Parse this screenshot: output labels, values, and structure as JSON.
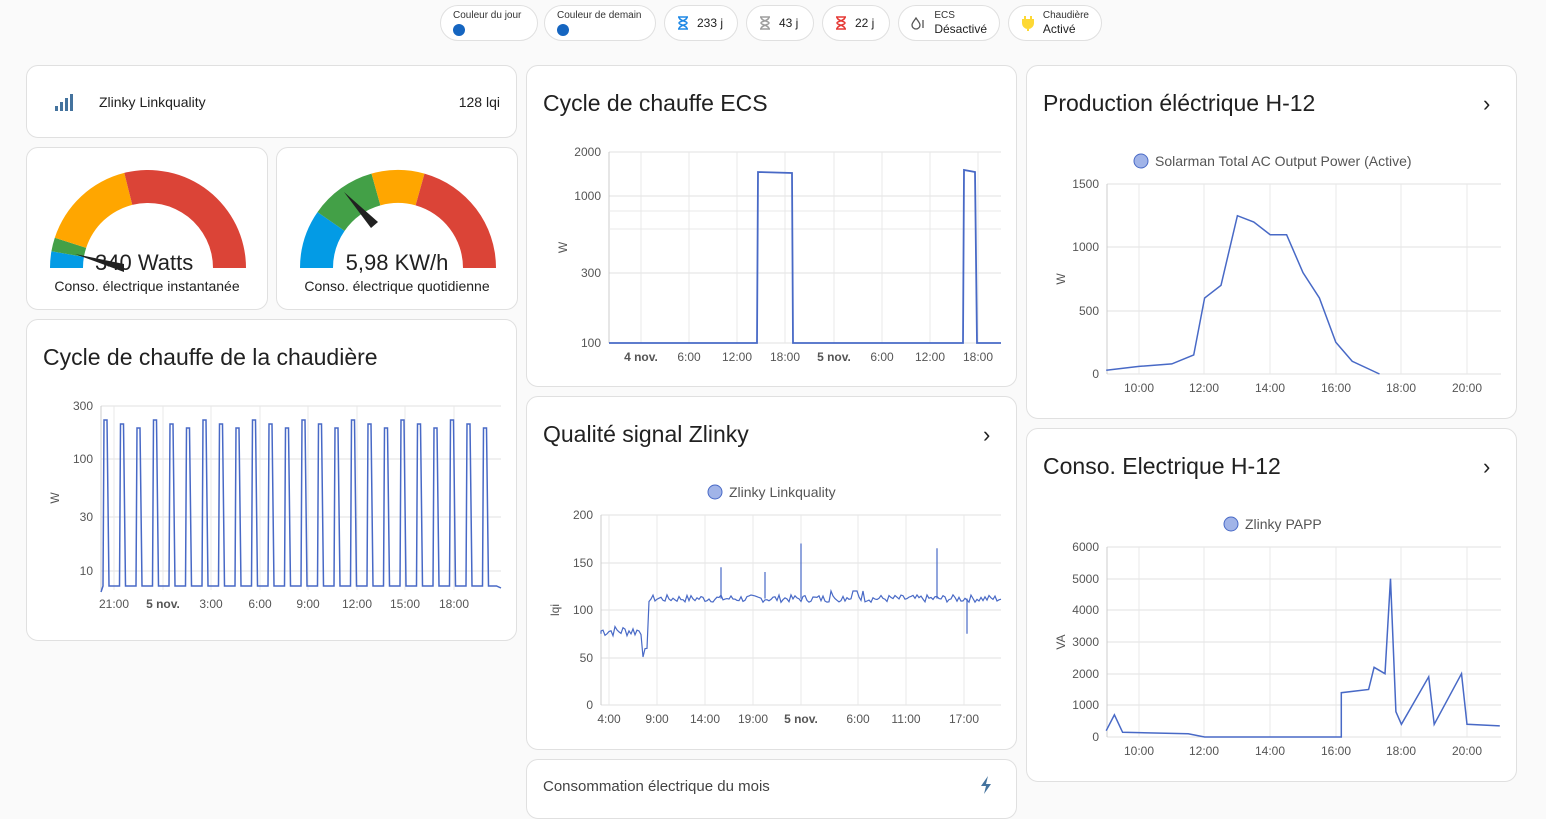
{
  "chips": {
    "couleur_jour": {
      "label": "Couleur du jour",
      "color": "#1565c0"
    },
    "couleur_demain": {
      "label": "Couleur de demain",
      "color": "#1565c0"
    },
    "tempo_blue": {
      "value": "233 j",
      "color": "#1e88e5"
    },
    "tempo_white": {
      "value": "43 j",
      "color": "#9e9e9e"
    },
    "tempo_red": {
      "value": "22 j",
      "color": "#e53935"
    },
    "ecs": {
      "label": "ECS",
      "value": "Désactivé"
    },
    "chaudiere": {
      "label": "Chaudière",
      "value": "Activé",
      "color": "#fdd835"
    }
  },
  "linkquality": {
    "name": "Zlinky Linkquality",
    "value": "128 lqi"
  },
  "gauges": [
    {
      "value": "340 Watts",
      "label": "Conso. électrique instantanée",
      "level": 0.05
    },
    {
      "value": "5,98 KW/h",
      "label": "Conso. électrique quotidienne",
      "level": 0.28
    }
  ],
  "chaudiere_card": {
    "title": "Cycle de chauffe de la chaudière"
  },
  "ecs_card": {
    "title": "Cycle de chauffe ECS"
  },
  "zlinky_card": {
    "title": "Qualité signal Zlinky"
  },
  "prod_card": {
    "title": "Production éléctrique H-12"
  },
  "conso_card": {
    "title": "Conso. Electrique H-12"
  },
  "mois_card": {
    "title": "Consommation électrique du mois"
  },
  "chart_data": [
    {
      "type": "line",
      "id": "chaudiere",
      "ylabel": "W",
      "scale": "log",
      "yticks": [
        "300",
        "100",
        "30",
        "10"
      ],
      "xticks": [
        "21:00",
        "5 nov.",
        "3:00",
        "6:00",
        "9:00",
        "12:00",
        "15:00",
        "18:00"
      ],
      "series": [
        {
          "values": "periodic spikes between ~5 W and ~250 W, about 24 cycles"
        }
      ]
    },
    {
      "type": "line",
      "id": "ecs",
      "ylabel": "W",
      "scale": "log",
      "yticks": [
        "2000",
        "1000",
        "300",
        "100"
      ],
      "xticks": [
        "4 nov.",
        "6:00",
        "12:00",
        "18:00",
        "5 nov.",
        "6:00",
        "12:00",
        "18:00"
      ],
      "series": [
        {
          "points": [
            [
              "4 nov. 00:00",
              100
            ],
            [
              "4 nov. 14:30",
              100
            ],
            [
              "4 nov. 14:30",
              1550
            ],
            [
              "4 nov. 18:10",
              1550
            ],
            [
              "4 nov. 18:10",
              100
            ],
            [
              "5 nov. 16:30",
              100
            ],
            [
              "5 nov. 16:30",
              1600
            ],
            [
              "5 nov. 17:10",
              1600
            ],
            [
              "5 nov. 17:10",
              100
            ],
            [
              "5 nov. 23:00",
              100
            ]
          ]
        }
      ]
    },
    {
      "type": "line",
      "id": "zlinky",
      "ylabel": "lqi",
      "ylim": [
        0,
        200
      ],
      "yticks": [
        "200",
        "150",
        "100",
        "50",
        "0"
      ],
      "xticks": [
        "4:00",
        "9:00",
        "14:00",
        "19:00",
        "5 nov.",
        "6:00",
        "11:00",
        "17:00"
      ],
      "series": [
        {
          "name": "Zlinky Linkquality",
          "color": "#a1b4e8",
          "values": "~75 until ~8:30 then ~110-115 with spikes to 170"
        }
      ]
    },
    {
      "type": "line",
      "id": "production",
      "ylabel": "W",
      "ylim": [
        0,
        1500
      ],
      "yticks": [
        "1500",
        "1000",
        "500",
        "0"
      ],
      "xticks": [
        "10:00",
        "12:00",
        "14:00",
        "16:00",
        "18:00",
        "20:00"
      ],
      "series": [
        {
          "name": "Solarman Total AC Output Power (Active)",
          "color": "#a1b4e8",
          "points": [
            [
              "9:00",
              30
            ],
            [
              "10:00",
              60
            ],
            [
              "11:00",
              80
            ],
            [
              "11:40",
              150
            ],
            [
              "12:00",
              600
            ],
            [
              "12:30",
              700
            ],
            [
              "13:00",
              1250
            ],
            [
              "13:30",
              1200
            ],
            [
              "14:00",
              1100
            ],
            [
              "14:30",
              1100
            ],
            [
              "15:00",
              800
            ],
            [
              "15:30",
              600
            ],
            [
              "16:00",
              250
            ],
            [
              "16:30",
              100
            ],
            [
              "17:20",
              0
            ]
          ]
        }
      ]
    },
    {
      "type": "line",
      "id": "conso",
      "ylabel": "VA",
      "ylim": [
        0,
        6000
      ],
      "yticks": [
        "6000",
        "5000",
        "4000",
        "3000",
        "2000",
        "1000",
        "0"
      ],
      "xticks": [
        "10:00",
        "12:00",
        "14:00",
        "16:00",
        "18:00",
        "20:00"
      ],
      "series": [
        {
          "name": "Zlinky PAPP",
          "color": "#a1b4e8",
          "points": [
            [
              "9:00",
              200
            ],
            [
              "9:15",
              700
            ],
            [
              "9:30",
              150
            ],
            [
              "11:30",
              100
            ],
            [
              "12:00",
              0
            ],
            [
              "16:10",
              0
            ],
            [
              "16:10",
              1400
            ],
            [
              "17:00",
              1500
            ],
            [
              "17:10",
              2200
            ],
            [
              "17:30",
              2000
            ],
            [
              "17:40",
              5000
            ],
            [
              "17:50",
              800
            ],
            [
              "18:00",
              400
            ],
            [
              "18:50",
              1900
            ],
            [
              "19:00",
              400
            ],
            [
              "19:50",
              2000
            ],
            [
              "20:00",
              400
            ],
            [
              "21:00",
              350
            ]
          ]
        }
      ]
    }
  ]
}
